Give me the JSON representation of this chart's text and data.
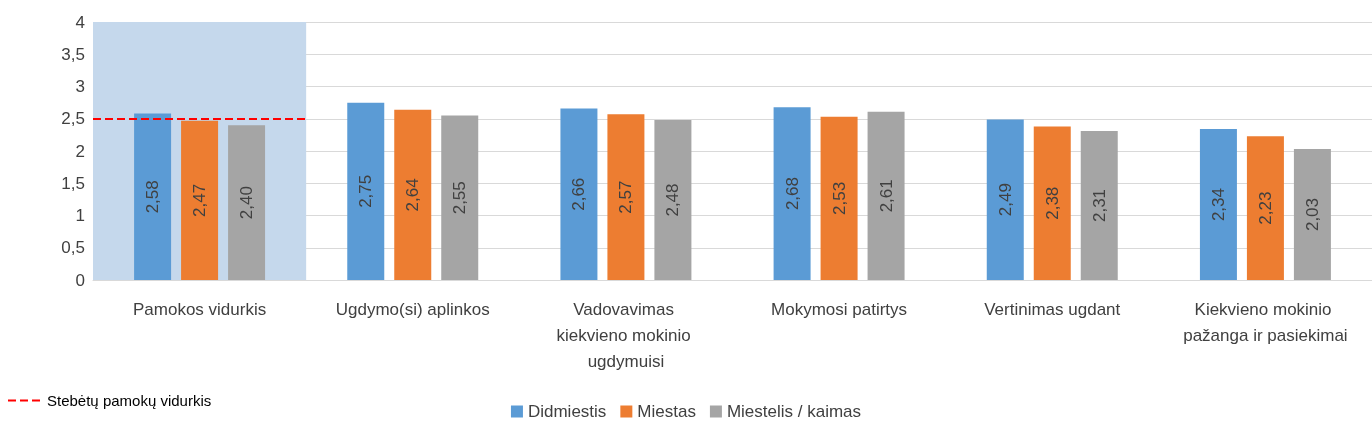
{
  "chart_data": {
    "type": "bar",
    "categories": [
      "Pamokos vidurkis",
      "Ugdymo(si) aplinkos",
      "Vadovavimas kiekvieno mokinio ugdymuisi",
      "Mokymosi patirtys",
      "Vertinimas ugdant",
      "Kiekvieno mokinio pažanga ir pasiekimai"
    ],
    "series": [
      {
        "name": "Didmiestis",
        "color": "#5b9bd5",
        "values": [
          2.58,
          2.75,
          2.66,
          2.68,
          2.49,
          2.34
        ],
        "value_labels": [
          "2,58",
          "2,75",
          "2,66",
          "2,68",
          "2,49",
          "2,34"
        ]
      },
      {
        "name": "Miestas",
        "color": "#ed7d31",
        "values": [
          2.47,
          2.64,
          2.57,
          2.53,
          2.38,
          2.23
        ],
        "value_labels": [
          "2,47",
          "2,64",
          "2,57",
          "2,53",
          "2,38",
          "2,23"
        ]
      },
      {
        "name": "Miestelis / kaimas",
        "color": "#a5a5a5",
        "values": [
          2.4,
          2.55,
          2.48,
          2.61,
          2.31,
          2.03
        ],
        "value_labels": [
          "2,40",
          "2,55",
          "2,48",
          "2,61",
          "2,31",
          "2,03"
        ]
      }
    ],
    "ylim": [
      0,
      4
    ],
    "yticks": [
      0,
      {
        "value": 0.5,
        "label": "0,5"
      },
      1,
      {
        "value": 1.5,
        "label": "1,5"
      },
      2,
      {
        "value": 2.5,
        "label": "2,5"
      },
      3,
      {
        "value": 3.5,
        "label": "3,5"
      },
      4
    ],
    "grid": "y",
    "legend": "bottom",
    "bands": [
      {
        "axis": "x",
        "from": "Pamokos vidurkis",
        "to": "Pamokos vidurkis",
        "color": "#c5d8ec"
      }
    ],
    "ref_lines": [
      {
        "axis": "y",
        "value": 2.5,
        "label": "Stebėtų pamokų vidurkis",
        "color": "#ff0000",
        "line_style": "dashed"
      }
    ]
  }
}
